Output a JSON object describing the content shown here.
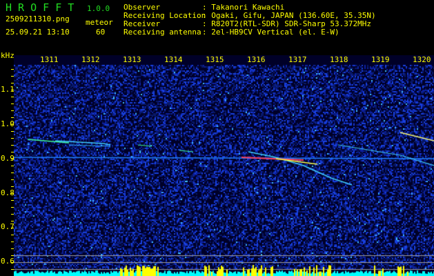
{
  "header": {
    "app_name": "H R O F F T",
    "version": "1.0.0",
    "filename": "2509211310.png",
    "datetime": "25.09.21 13:10",
    "meteor_label": "meteor",
    "meteor_count": "60"
  },
  "info": [
    {
      "label": "Observer",
      "value": ": Takanori Kawachi"
    },
    {
      "label": "Receiving Location",
      "value": ": Ogaki, Gifu, JAPAN (136.60E, 35.35N)"
    },
    {
      "label": "Receiver",
      "value": ": R820T2(RTL-SDR) SDR-Sharp 53.372MHz"
    },
    {
      "label": "Receiving antenna",
      "value": ": 2el-HB9CV Vertical (el. E-W)"
    }
  ],
  "spectrogram": {
    "y_unit": "kHz",
    "y_ticks": [
      "1.1",
      "1.0",
      "0.9",
      "0.8",
      "0.7",
      "0.6"
    ],
    "x_ticks": [
      "1311",
      "1312",
      "1313",
      "1314",
      "1315",
      "1316",
      "1317",
      "1318",
      "1319",
      "1320"
    ],
    "colors": {
      "background": "#000033",
      "noise": "#1030d0",
      "label": "#ffff00",
      "level_bar": "#00ffff",
      "level_peak": "#ffff00"
    }
  }
}
